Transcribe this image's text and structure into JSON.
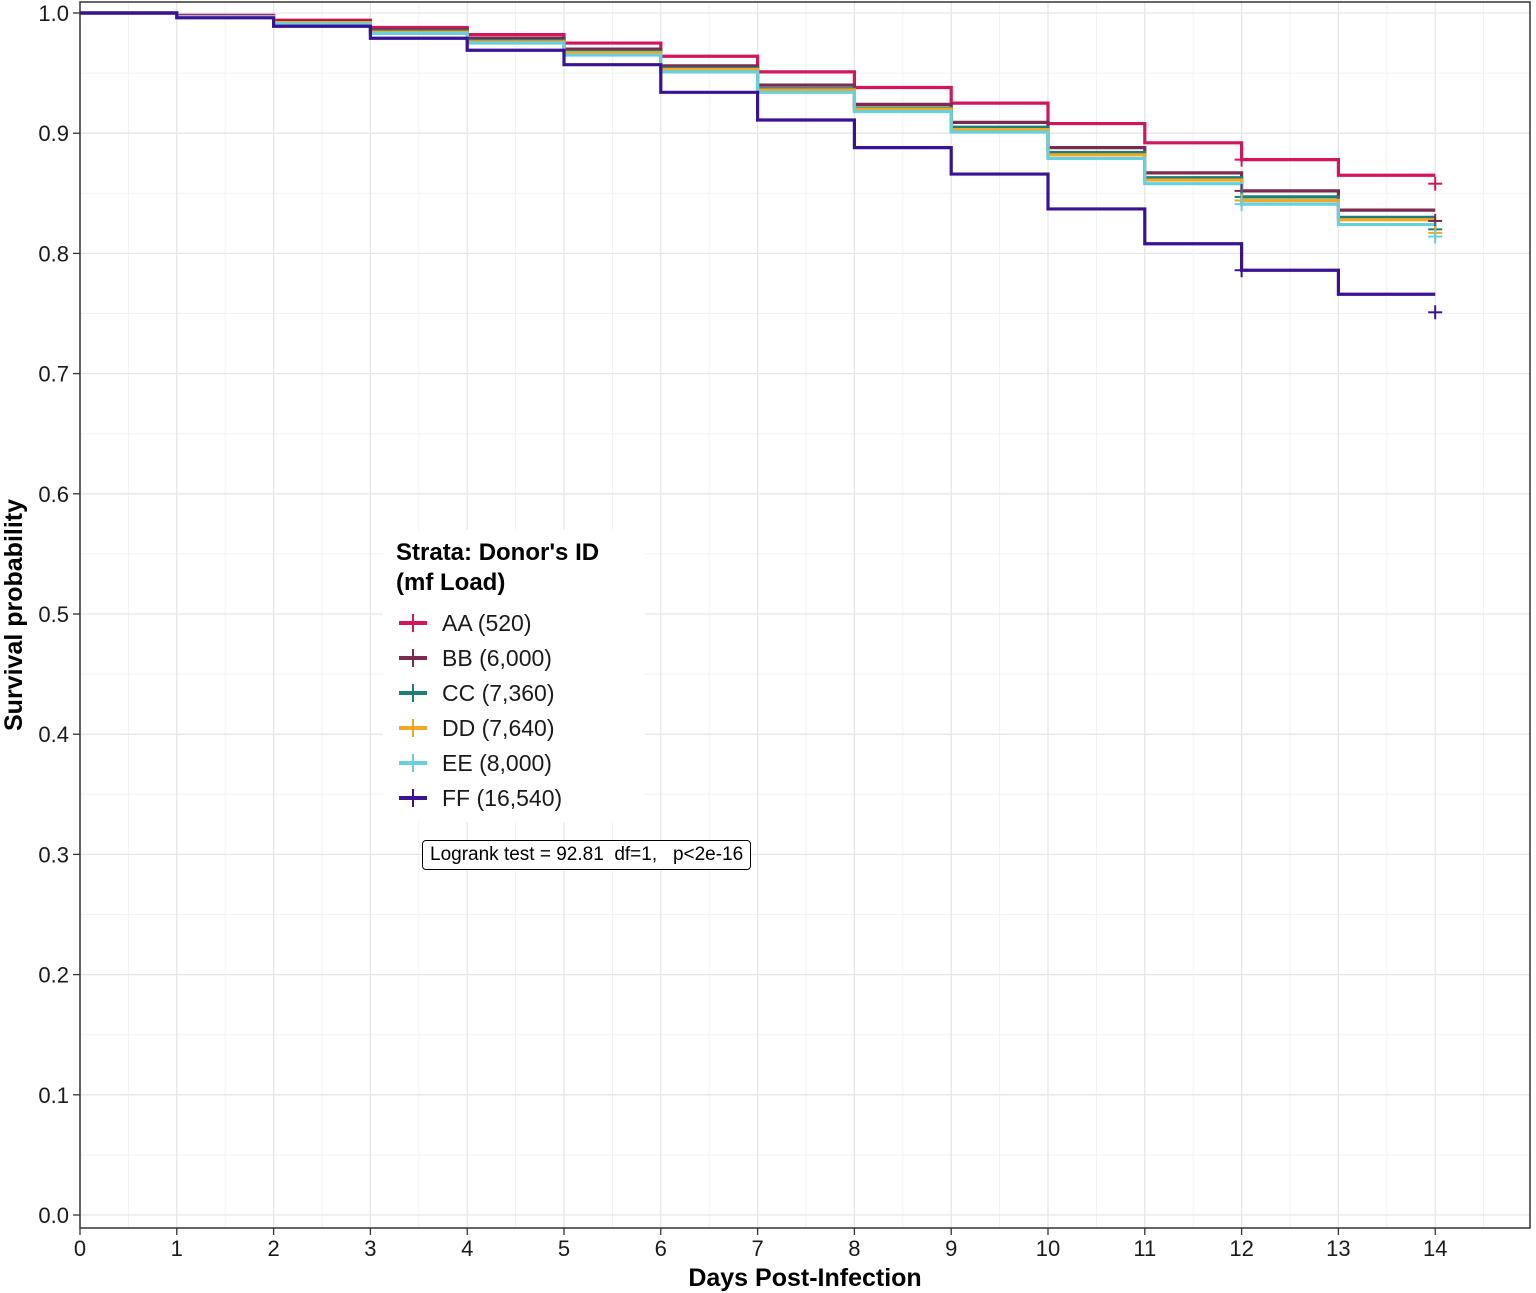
{
  "chart_data": {
    "type": "line",
    "subtype": "kaplan-meier step",
    "title": "",
    "xlabel": "Days Post-Infection",
    "ylabel": "Survival probability",
    "xlim": [
      0,
      15
    ],
    "ylim": [
      0,
      1
    ],
    "x_ticks": [
      0,
      1,
      2,
      3,
      4,
      5,
      6,
      7,
      8,
      9,
      10,
      11,
      12,
      13,
      14
    ],
    "y_ticks": [
      0.0,
      0.1,
      0.2,
      0.3,
      0.4,
      0.5,
      0.6,
      0.7,
      0.8,
      0.9,
      1.0
    ],
    "y_tick_labels": [
      "0.0",
      "0.1",
      "0.2",
      "0.3",
      "0.4",
      "0.5",
      "0.6",
      "0.7",
      "0.8",
      "0.9",
      "1.0"
    ],
    "grid": true,
    "legend": {
      "title_line1": "Strata: Donor's ID",
      "title_line2": "(mf Load)",
      "placement": "center-left"
    },
    "annotation": "Logrank test = 92.81  df=1,   p<2e-16",
    "series": [
      {
        "name": "AA (520)",
        "color": "#d6145b",
        "x": [
          0,
          1,
          2,
          3,
          4,
          5,
          6,
          7,
          8,
          9,
          10,
          11,
          12,
          13,
          14
        ],
        "y": [
          1.0,
          0.998,
          0.994,
          0.988,
          0.982,
          0.975,
          0.964,
          0.951,
          0.938,
          0.925,
          0.908,
          0.892,
          0.878,
          0.865,
          0.865
        ],
        "censored": [
          {
            "x": 12,
            "y": 0.878
          },
          {
            "x": 14,
            "y": 0.858
          }
        ]
      },
      {
        "name": "BB (6,000)",
        "color": "#7e2a50",
        "x": [
          0,
          1,
          2,
          3,
          4,
          5,
          6,
          7,
          8,
          9,
          10,
          11,
          12,
          13,
          14
        ],
        "y": [
          1.0,
          0.997,
          0.993,
          0.986,
          0.979,
          0.97,
          0.956,
          0.94,
          0.924,
          0.909,
          0.888,
          0.867,
          0.852,
          0.836,
          0.836
        ],
        "censored": [
          {
            "x": 12,
            "y": 0.852
          },
          {
            "x": 14,
            "y": 0.827
          }
        ]
      },
      {
        "name": "CC (7,360)",
        "color": "#1b8078",
        "x": [
          0,
          1,
          2,
          3,
          4,
          5,
          6,
          7,
          8,
          9,
          10,
          11,
          12,
          13,
          14
        ],
        "y": [
          1.0,
          0.997,
          0.992,
          0.985,
          0.977,
          0.968,
          0.954,
          0.937,
          0.921,
          0.905,
          0.884,
          0.863,
          0.847,
          0.83,
          0.83
        ],
        "censored": [
          {
            "x": 12,
            "y": 0.847
          },
          {
            "x": 14,
            "y": 0.82
          }
        ]
      },
      {
        "name": "DD (7,640)",
        "color": "#f5a623",
        "x": [
          0,
          1,
          2,
          3,
          4,
          5,
          6,
          7,
          8,
          9,
          10,
          11,
          12,
          13,
          14
        ],
        "y": [
          1.0,
          0.997,
          0.992,
          0.984,
          0.976,
          0.967,
          0.953,
          0.936,
          0.92,
          0.903,
          0.882,
          0.861,
          0.844,
          0.828,
          0.828
        ],
        "censored": [
          {
            "x": 12,
            "y": 0.844
          },
          {
            "x": 14,
            "y": 0.817
          }
        ]
      },
      {
        "name": "EE (8,000)",
        "color": "#66d0dc",
        "x": [
          0,
          1,
          2,
          3,
          4,
          5,
          6,
          7,
          8,
          9,
          10,
          11,
          12,
          13,
          14
        ],
        "y": [
          1.0,
          0.997,
          0.991,
          0.983,
          0.975,
          0.965,
          0.951,
          0.934,
          0.918,
          0.901,
          0.879,
          0.858,
          0.841,
          0.824,
          0.824
        ],
        "censored": [
          {
            "x": 12,
            "y": 0.841
          },
          {
            "x": 14,
            "y": 0.814
          }
        ]
      },
      {
        "name": "FF (16,540)",
        "color": "#3a1296",
        "x": [
          0,
          1,
          2,
          3,
          4,
          5,
          6,
          7,
          8,
          9,
          10,
          11,
          12,
          13,
          14
        ],
        "y": [
          1.0,
          0.996,
          0.989,
          0.979,
          0.969,
          0.957,
          0.934,
          0.911,
          0.888,
          0.866,
          0.837,
          0.808,
          0.786,
          0.766,
          0.766
        ],
        "censored": [
          {
            "x": 12,
            "y": 0.786
          },
          {
            "x": 14,
            "y": 0.751
          }
        ]
      }
    ]
  }
}
